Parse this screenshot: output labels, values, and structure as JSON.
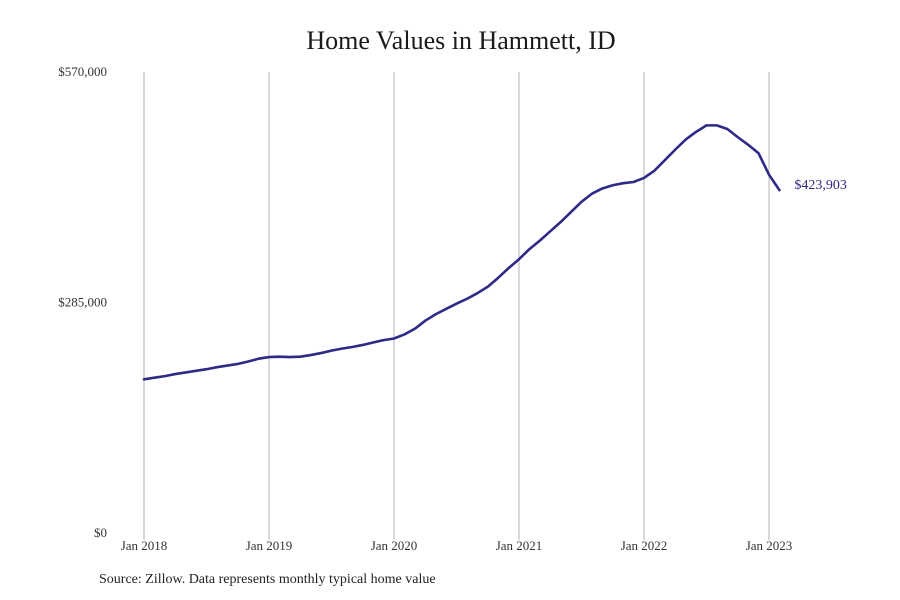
{
  "page": {
    "title": "Home Values in Hammett, ID",
    "source": "Source: Zillow. Data represents monthly typical home value"
  },
  "chart_data": {
    "type": "line",
    "title": "Home Values in Hammett, ID",
    "xlabel": "",
    "ylabel": "",
    "ylim": [
      0,
      570000
    ],
    "y_ticks": [
      {
        "value": 0,
        "label": "$0"
      },
      {
        "value": 285000,
        "label": "$285,000"
      },
      {
        "value": 570000,
        "label": "$570,000"
      }
    ],
    "x_ticks": [
      {
        "value": "2018-01",
        "label": "Jan 2018"
      },
      {
        "value": "2019-01",
        "label": "Jan 2019"
      },
      {
        "value": "2020-01",
        "label": "Jan 2020"
      },
      {
        "value": "2021-01",
        "label": "Jan 2021"
      },
      {
        "value": "2022-01",
        "label": "Jan 2022"
      },
      {
        "value": "2023-01",
        "label": "Jan 2023"
      }
    ],
    "grid": {
      "vertical": true,
      "horizontal": false
    },
    "line_color": "#2e2a85",
    "grid_color": "#b3b3b3",
    "end_label": "$423,903",
    "x": [
      "2018-01",
      "2018-02",
      "2018-03",
      "2018-04",
      "2018-05",
      "2018-06",
      "2018-07",
      "2018-08",
      "2018-09",
      "2018-10",
      "2018-11",
      "2018-12",
      "2019-01",
      "2019-02",
      "2019-03",
      "2019-04",
      "2019-05",
      "2019-06",
      "2019-07",
      "2019-08",
      "2019-09",
      "2019-10",
      "2019-11",
      "2019-12",
      "2020-01",
      "2020-02",
      "2020-03",
      "2020-04",
      "2020-05",
      "2020-06",
      "2020-07",
      "2020-08",
      "2020-09",
      "2020-10",
      "2020-11",
      "2020-12",
      "2021-01",
      "2021-02",
      "2021-03",
      "2021-04",
      "2021-05",
      "2021-06",
      "2021-07",
      "2021-08",
      "2021-09",
      "2021-10",
      "2021-11",
      "2021-12",
      "2022-01",
      "2022-02",
      "2022-03",
      "2022-04",
      "2022-05",
      "2022-06",
      "2022-07",
      "2022-08",
      "2022-09",
      "2022-10",
      "2022-11",
      "2022-12",
      "2023-01",
      "2023-02"
    ],
    "series": [
      {
        "values": [
          190000,
          192000,
          194000,
          196500,
          198500,
          200500,
          202500,
          205000,
          207000,
          209000,
          212000,
          215500,
          217500,
          218000,
          217500,
          218000,
          220000,
          222500,
          225500,
          228000,
          230000,
          232500,
          235500,
          238500,
          240500,
          245500,
          252500,
          262500,
          270500,
          277000,
          283500,
          289500,
          296500,
          304500,
          315500,
          327500,
          338500,
          351000,
          361500,
          373000,
          384500,
          397000,
          409500,
          419500,
          426000,
          430000,
          432500,
          434000,
          439000,
          448000,
          461000,
          474000,
          486500,
          496000,
          504000,
          504000,
          499500,
          489500,
          480000,
          469500,
          443000,
          423903
        ]
      }
    ]
  }
}
